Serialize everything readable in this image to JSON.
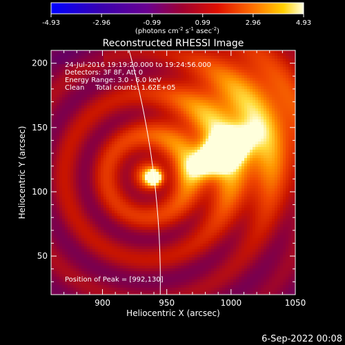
{
  "colorbar": {
    "ticks": [
      -4.93,
      -2.96,
      -0.99,
      0.99,
      2.96,
      4.93
    ],
    "tick_labels": [
      "-4.93",
      "-2.96",
      "-0.99",
      "0.99",
      "2.96",
      "4.93"
    ],
    "unit_label": "(photons cm-2 s-1 asec-2)",
    "range": [
      -4.93,
      4.93
    ]
  },
  "chart_data": {
    "type": "heatmap",
    "title": "Reconstructed RHESSI Image",
    "xlabel": "Heliocentric X (arcsec)",
    "ylabel": "Heliocentric Y (arcsec)",
    "xlim": [
      860,
      1050
    ],
    "ylim": [
      20,
      210
    ],
    "x_ticks": [
      900,
      950,
      1000,
      1050
    ],
    "y_ticks": [
      50,
      100,
      150,
      200
    ],
    "sources": [
      {
        "x": 992,
        "y": 130,
        "peak": 4.93
      },
      {
        "x": 940,
        "y": 111,
        "peak": 4.3
      }
    ],
    "annotations": [
      "24-Jul-2016 19:19:20.000 to 19:24:56.000",
      "Detectors: 3F 8F, Att 0",
      "Energy Range: 3.0 - 6.0 keV",
      "Clean     Total counts: 1.62E+05"
    ],
    "peak_label": "Position of Peak = [992,130]"
  },
  "footer": {
    "date": "6-Sep-2022 00:08"
  },
  "colors": {
    "background": "#000000",
    "text": "#ffffff"
  }
}
